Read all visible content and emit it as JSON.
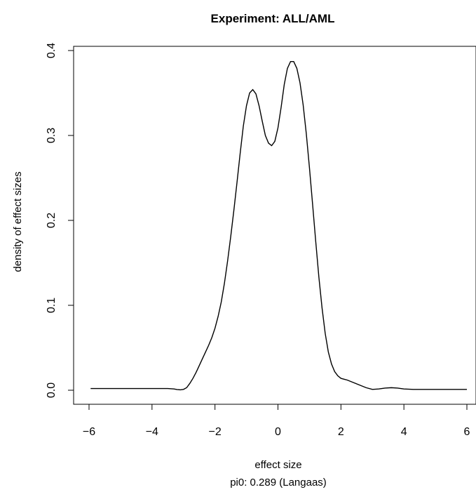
{
  "chart_data": {
    "type": "line",
    "title": "Experiment: ALL/AML",
    "xlabel": "effect size",
    "ylabel": "density of effect sizes",
    "subtitle": "pi0: 0.289 (Langaas)",
    "xlim": [
      -6,
      6
    ],
    "ylim": [
      0,
      0.4
    ],
    "xticks": [
      -6,
      -4,
      -2,
      0,
      2,
      4,
      6
    ],
    "yticks": [
      0.0,
      0.1,
      0.2,
      0.3,
      0.4
    ],
    "xtick_labels": [
      "−6",
      "−4",
      "−2",
      "0",
      "2",
      "4",
      "6"
    ],
    "ytick_labels": [
      "0.0",
      "0.1",
      "0.2",
      "0.3",
      "0.4"
    ],
    "grid": false,
    "series": [
      {
        "x": [
          -5.95,
          -5.0,
          -4.0,
          -3.5,
          -3.3,
          -3.2,
          -3.1,
          -3.0,
          -2.9,
          -2.8,
          -2.7,
          -2.6,
          -2.5,
          -2.4,
          -2.3,
          -2.2,
          -2.1,
          -2.0,
          -1.9,
          -1.8,
          -1.7,
          -1.6,
          -1.5,
          -1.4,
          -1.3,
          -1.2,
          -1.1,
          -1.0,
          -0.9,
          -0.8,
          -0.7,
          -0.6,
          -0.5,
          -0.4,
          -0.3,
          -0.2,
          -0.1,
          0.0,
          0.1,
          0.2,
          0.3,
          0.4,
          0.5,
          0.6,
          0.7,
          0.8,
          0.9,
          1.0,
          1.1,
          1.2,
          1.3,
          1.4,
          1.5,
          1.6,
          1.7,
          1.8,
          1.9,
          2.0,
          2.1,
          2.2,
          2.4,
          2.6,
          2.8,
          3.0,
          3.2,
          3.4,
          3.6,
          3.8,
          4.0,
          4.3,
          5.0,
          6.0
        ],
        "y": [
          0.002,
          0.002,
          0.002,
          0.002,
          0.0015,
          0.0008,
          0.0005,
          0.001,
          0.003,
          0.008,
          0.014,
          0.021,
          0.029,
          0.037,
          0.045,
          0.053,
          0.062,
          0.073,
          0.087,
          0.104,
          0.126,
          0.152,
          0.181,
          0.212,
          0.245,
          0.279,
          0.311,
          0.335,
          0.35,
          0.354,
          0.349,
          0.335,
          0.317,
          0.3,
          0.291,
          0.288,
          0.293,
          0.309,
          0.333,
          0.36,
          0.379,
          0.387,
          0.387,
          0.379,
          0.362,
          0.336,
          0.302,
          0.262,
          0.219,
          0.175,
          0.133,
          0.097,
          0.067,
          0.045,
          0.031,
          0.022,
          0.017,
          0.014,
          0.013,
          0.012,
          0.009,
          0.006,
          0.003,
          0.001,
          0.0015,
          0.0025,
          0.003,
          0.0025,
          0.0015,
          0.001,
          0.001,
          0.001
        ]
      }
    ]
  }
}
